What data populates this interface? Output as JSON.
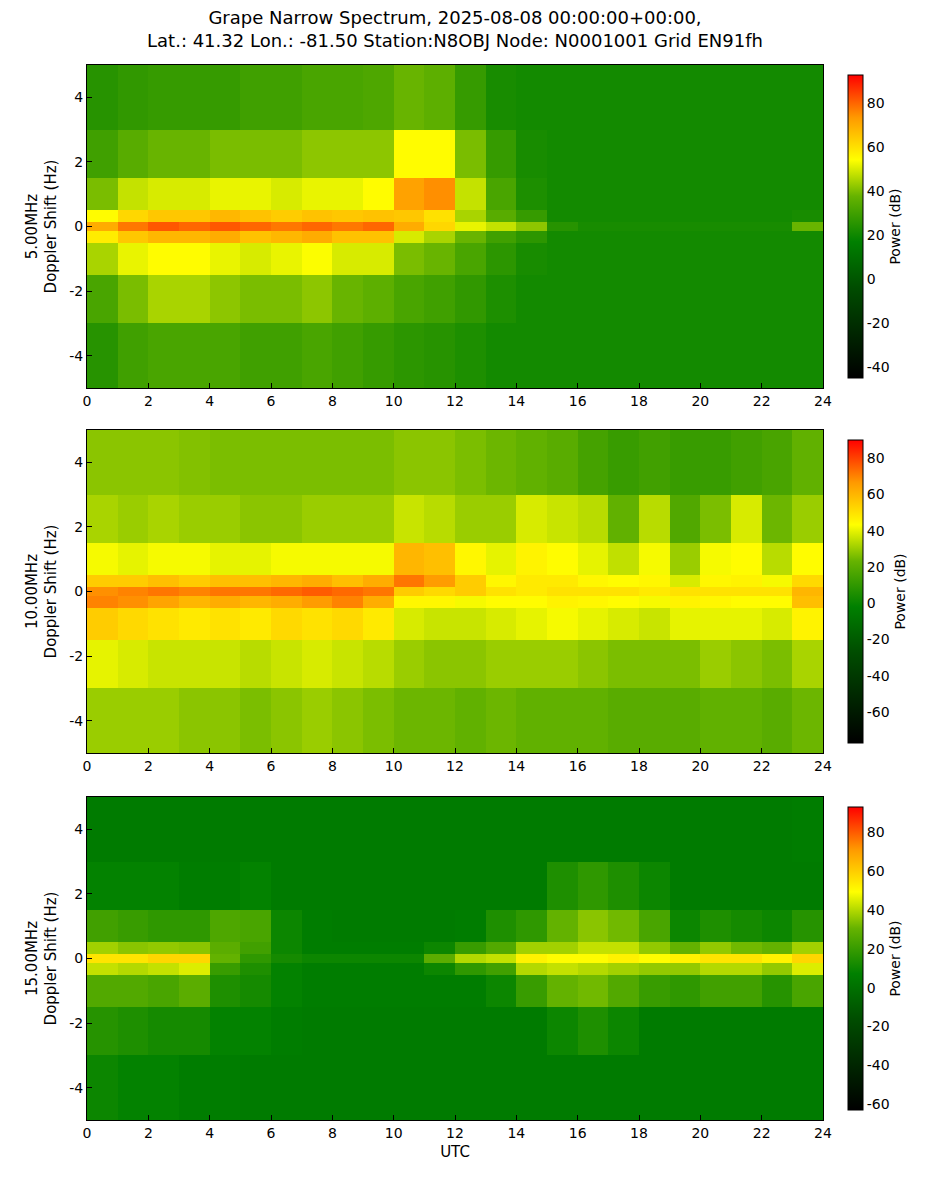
{
  "chart_data": [
    {
      "type": "heatmap",
      "title": [
        "Grape Narrow Spectrum, 2025-08-08 00:00:00+00:00,",
        "Lat.: 41.32 Lon.: -81.50 Station:N8OBJ Node: N0001001 Grid EN91fh"
      ],
      "y_label": [
        "5.00MHz",
        "Doppler Shift (Hz)"
      ],
      "xlim": [
        0,
        24
      ],
      "xticks": [
        0,
        2,
        4,
        6,
        8,
        10,
        12,
        14,
        16,
        18,
        20,
        22,
        24
      ],
      "ylim": [
        -5,
        5
      ],
      "yticks": [
        -4,
        -2,
        0,
        2,
        4
      ],
      "grid": true,
      "x_edges": [
        0,
        1,
        2,
        3,
        4,
        5,
        6,
        7,
        8,
        9,
        10,
        11,
        12,
        13,
        14,
        15,
        16,
        17,
        18,
        19,
        20,
        21,
        22,
        23,
        24
      ],
      "y_edges": [
        -5,
        -3,
        -1.5,
        -0.5,
        -0.15,
        0.15,
        0.5,
        1.5,
        3,
        5
      ],
      "cells": [
        [
          25,
          30,
          32,
          32,
          32,
          30,
          30,
          32,
          30,
          28,
          26,
          25,
          23,
          21,
          21,
          21,
          21,
          21,
          21,
          21,
          21,
          21,
          21,
          21
        ],
        [
          32,
          40,
          45,
          45,
          42,
          40,
          40,
          42,
          38,
          36,
          32,
          30,
          27,
          23,
          21,
          21,
          21,
          21,
          21,
          21,
          21,
          21,
          21,
          21
        ],
        [
          45,
          52,
          55,
          55,
          52,
          50,
          52,
          54,
          50,
          50,
          40,
          38,
          32,
          26,
          22,
          21,
          21,
          21,
          21,
          21,
          21,
          21,
          21,
          21
        ],
        [
          58,
          65,
          68,
          68,
          70,
          66,
          68,
          70,
          66,
          66,
          50,
          45,
          38,
          30,
          26,
          21,
          21,
          21,
          21,
          21,
          21,
          21,
          21,
          21
        ],
        [
          70,
          78,
          82,
          80,
          82,
          80,
          78,
          80,
          78,
          80,
          70,
          62,
          52,
          48,
          42,
          25,
          22,
          22,
          22,
          22,
          22,
          22,
          22,
          38
        ],
        [
          55,
          62,
          65,
          65,
          68,
          66,
          64,
          66,
          65,
          66,
          65,
          60,
          45,
          35,
          28,
          21,
          21,
          21,
          21,
          21,
          21,
          21,
          21,
          22
        ],
        [
          40,
          48,
          50,
          50,
          52,
          52,
          50,
          52,
          52,
          55,
          72,
          75,
          48,
          32,
          23,
          21,
          21,
          21,
          21,
          21,
          21,
          21,
          21,
          21
        ],
        [
          30,
          35,
          38,
          38,
          40,
          40,
          40,
          42,
          42,
          42,
          55,
          55,
          40,
          28,
          22,
          21,
          21,
          21,
          21,
          21,
          21,
          21,
          21,
          21
        ],
        [
          25,
          27,
          28,
          28,
          28,
          30,
          30,
          32,
          32,
          33,
          38,
          36,
          28,
          22,
          21,
          21,
          21,
          21,
          21,
          21,
          21,
          21,
          21,
          21
        ]
      ],
      "colorbar": {
        "label": "Power (dB)",
        "range": [
          -45,
          93
        ],
        "ticks": [
          -40,
          -20,
          0,
          20,
          40,
          60,
          80
        ]
      }
    },
    {
      "type": "heatmap",
      "y_label": [
        "10.00MHz",
        "Doppler Shift (Hz)"
      ],
      "xlim": [
        0,
        24
      ],
      "xticks": [
        0,
        2,
        4,
        6,
        8,
        10,
        12,
        14,
        16,
        18,
        20,
        22,
        24
      ],
      "ylim": [
        -5,
        5
      ],
      "yticks": [
        -4,
        -2,
        0,
        2,
        4
      ],
      "grid": true,
      "x_edges": [
        0,
        1,
        2,
        3,
        4,
        5,
        6,
        7,
        8,
        9,
        10,
        11,
        12,
        13,
        14,
        15,
        16,
        17,
        18,
        19,
        20,
        21,
        22,
        23,
        24
      ],
      "y_edges": [
        -5,
        -3,
        -1.5,
        -0.5,
        -0.15,
        0.15,
        0.5,
        1.5,
        3,
        5
      ],
      "cells": [
        [
          30,
          30,
          30,
          28,
          28,
          26,
          28,
          30,
          28,
          26,
          24,
          24,
          22,
          24,
          22,
          22,
          22,
          20,
          20,
          20,
          22,
          22,
          20,
          24
        ],
        [
          40,
          38,
          36,
          36,
          36,
          34,
          36,
          38,
          36,
          34,
          30,
          28,
          28,
          30,
          30,
          30,
          28,
          26,
          26,
          26,
          30,
          28,
          26,
          32
        ],
        [
          55,
          52,
          50,
          48,
          50,
          48,
          52,
          50,
          52,
          48,
          38,
          36,
          36,
          38,
          40,
          42,
          40,
          38,
          36,
          40,
          40,
          40,
          38,
          46
        ],
        [
          70,
          68,
          64,
          60,
          62,
          60,
          62,
          66,
          70,
          62,
          45,
          45,
          42,
          44,
          44,
          46,
          45,
          44,
          42,
          46,
          45,
          44,
          44,
          58
        ],
        [
          68,
          70,
          72,
          70,
          72,
          72,
          74,
          76,
          74,
          72,
          55,
          52,
          55,
          50,
          48,
          50,
          50,
          50,
          48,
          50,
          50,
          50,
          50,
          60
        ],
        [
          55,
          55,
          58,
          55,
          58,
          58,
          60,
          62,
          58,
          62,
          72,
          66,
          55,
          45,
          48,
          48,
          45,
          44,
          45,
          38,
          45,
          46,
          42,
          52
        ],
        [
          42,
          40,
          42,
          42,
          40,
          40,
          42,
          42,
          42,
          42,
          60,
          58,
          45,
          40,
          46,
          44,
          40,
          35,
          42,
          30,
          42,
          44,
          34,
          44
        ],
        [
          32,
          30,
          32,
          30,
          30,
          28,
          28,
          30,
          30,
          30,
          36,
          34,
          30,
          30,
          38,
          36,
          34,
          22,
          34,
          18,
          26,
          38,
          24,
          30
        ],
        [
          28,
          28,
          28,
          27,
          26,
          26,
          26,
          26,
          26,
          26,
          28,
          28,
          26,
          24,
          22,
          20,
          15,
          12,
          14,
          12,
          12,
          14,
          16,
          22
        ]
      ],
      "colorbar": {
        "label": "Power (dB)",
        "range": [
          -77,
          90
        ],
        "ticks": [
          -60,
          -40,
          -20,
          0,
          20,
          40,
          60,
          80
        ]
      }
    },
    {
      "type": "heatmap",
      "y_label": [
        "15.00MHz",
        "Doppler Shift (Hz)"
      ],
      "x_label": "UTC",
      "xlim": [
        0,
        24
      ],
      "xticks": [
        0,
        2,
        4,
        6,
        8,
        10,
        12,
        14,
        16,
        18,
        20,
        22,
        24
      ],
      "ylim": [
        -5,
        5
      ],
      "yticks": [
        -4,
        -2,
        0,
        2,
        4
      ],
      "grid": true,
      "x_edges": [
        0,
        1,
        2,
        3,
        4,
        5,
        6,
        7,
        8,
        9,
        10,
        11,
        12,
        13,
        14,
        15,
        16,
        17,
        18,
        19,
        20,
        21,
        22,
        23,
        24
      ],
      "y_edges": [
        -5,
        -3,
        -1.5,
        -0.5,
        -0.15,
        0.15,
        0.5,
        1.5,
        3,
        5
      ],
      "cells": [
        [
          10,
          8,
          8,
          6,
          6,
          5,
          5,
          5,
          5,
          5,
          5,
          5,
          5,
          5,
          5,
          5,
          5,
          5,
          5,
          5,
          5,
          5,
          5,
          5
        ],
        [
          16,
          14,
          12,
          12,
          8,
          8,
          6,
          5,
          5,
          5,
          5,
          5,
          5,
          5,
          5,
          10,
          14,
          10,
          5,
          5,
          5,
          5,
          5,
          5
        ],
        [
          26,
          26,
          24,
          28,
          14,
          12,
          8,
          6,
          6,
          6,
          6,
          6,
          6,
          10,
          20,
          30,
          32,
          26,
          20,
          18,
          22,
          22,
          16,
          24
        ],
        [
          42,
          40,
          42,
          45,
          20,
          14,
          8,
          6,
          6,
          6,
          6,
          10,
          18,
          22,
          40,
          42,
          40,
          38,
          36,
          36,
          40,
          40,
          36,
          45
        ],
        [
          55,
          55,
          58,
          58,
          30,
          18,
          12,
          10,
          10,
          10,
          10,
          28,
          40,
          42,
          52,
          50,
          50,
          52,
          50,
          52,
          55,
          55,
          52,
          58
        ],
        [
          38,
          35,
          36,
          35,
          28,
          22,
          10,
          6,
          6,
          6,
          6,
          10,
          20,
          26,
          38,
          38,
          42,
          42,
          36,
          30,
          36,
          32,
          30,
          38
        ],
        [
          22,
          20,
          18,
          18,
          25,
          24,
          10,
          6,
          5,
          5,
          5,
          5,
          6,
          14,
          18,
          30,
          35,
          32,
          24,
          10,
          14,
          12,
          10,
          16
        ],
        [
          8,
          8,
          8,
          6,
          6,
          8,
          5,
          5,
          5,
          5,
          5,
          5,
          5,
          5,
          5,
          14,
          18,
          14,
          10,
          5,
          5,
          5,
          5,
          5
        ],
        [
          5,
          5,
          5,
          5,
          5,
          5,
          5,
          5,
          5,
          5,
          5,
          5,
          5,
          5,
          5,
          5,
          5,
          5,
          5,
          5,
          5,
          5,
          5,
          6
        ]
      ],
      "colorbar": {
        "label": "Power (dB)",
        "range": [
          -63,
          93
        ],
        "ticks": [
          -60,
          -40,
          -20,
          0,
          20,
          40,
          60,
          80
        ]
      }
    }
  ]
}
